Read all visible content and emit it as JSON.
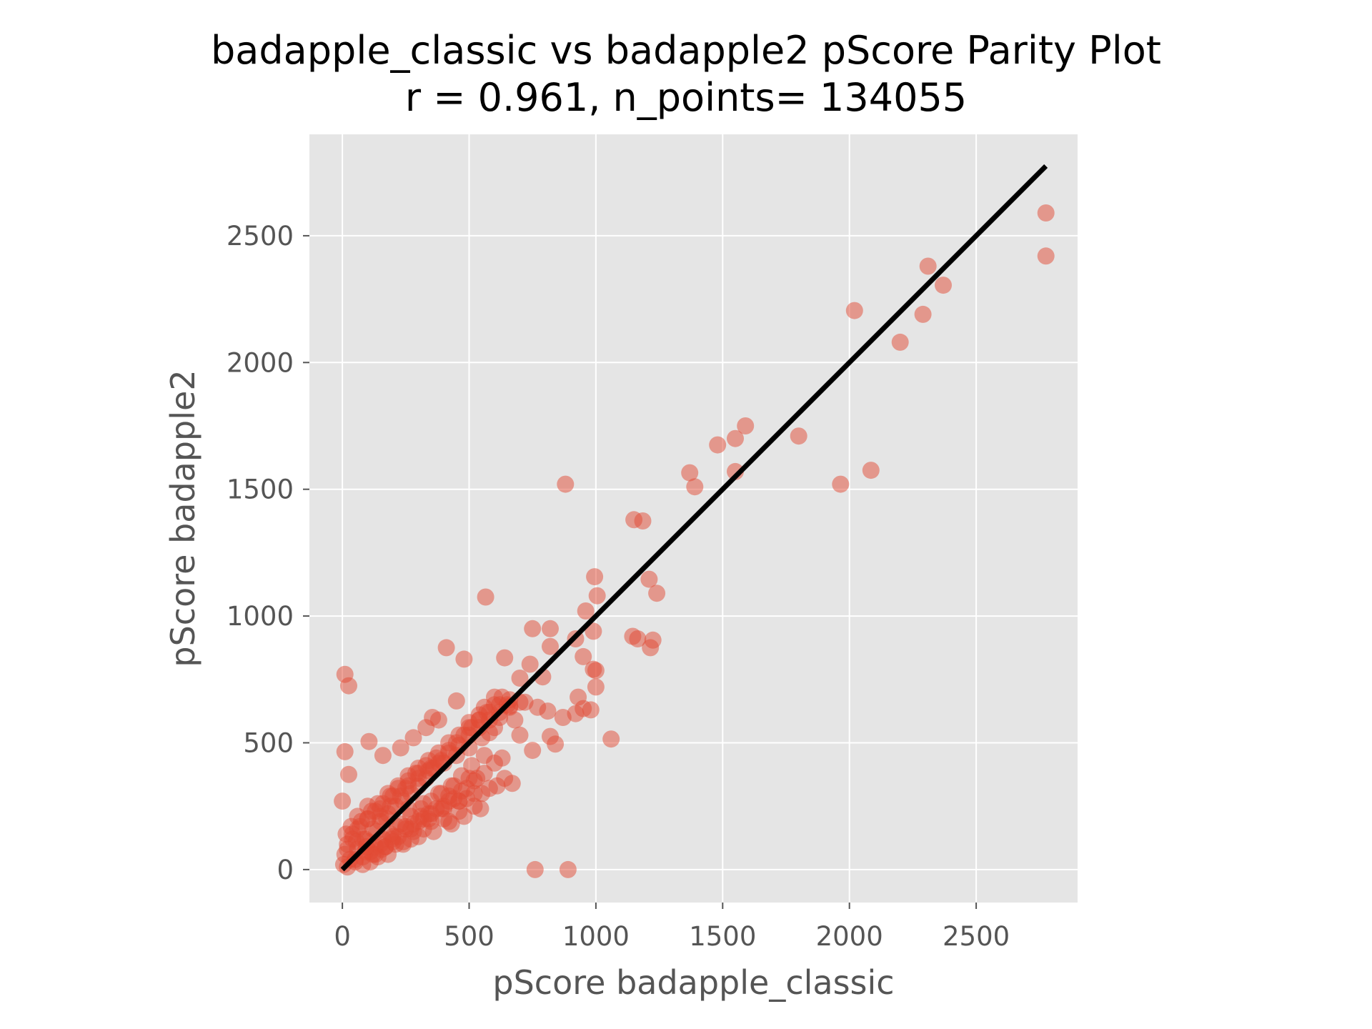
{
  "chart_data": {
    "type": "scatter",
    "title": "badapple_classic vs badapple2 pScore Parity Plot",
    "subtitle": "r = 0.961, n_points= 134055",
    "xlabel": "pScore badapple_classic",
    "ylabel": "pScore badapple2",
    "xlim": [
      -130,
      2900
    ],
    "ylim": [
      -130,
      2900
    ],
    "xticks": [
      "0",
      "500",
      "1000",
      "1500",
      "2000",
      "2500"
    ],
    "yticks": [
      "0",
      "500",
      "1000",
      "1500",
      "2000",
      "2500"
    ],
    "grid": true,
    "background": "#e5e5e5",
    "point_color": "#e24a33",
    "line_color": "#000000",
    "parity_line": {
      "x": [
        0,
        2775
      ],
      "y": [
        0,
        2775
      ]
    },
    "series": [
      {
        "x": [
          2775,
          2775,
          2310,
          2370,
          2290,
          2020,
          2200,
          1590,
          1800,
          1550,
          1480,
          2085,
          1965,
          1550,
          1370,
          1390,
          880,
          1150,
          1185,
          1210,
          1240,
          995,
          960,
          1005,
          920,
          1165,
          1145,
          1215,
          1225,
          565,
          410,
          480,
          750,
          820,
          820,
          990,
          1000,
          950,
          1000,
          650,
          740,
          700,
          790,
          930,
          980,
          770,
          720,
          680,
          810,
          820,
          950,
          1060,
          920,
          840,
          870,
          750,
          640,
          600,
          560,
          700,
          990,
          10,
          25,
          10,
          25,
          105,
          760,
          890,
          160,
          230,
          280,
          330,
          355,
          380,
          450,
          500,
          540,
          580,
          620,
          660,
          300,
          350,
          400,
          450,
          500,
          550,
          600,
          250,
          200,
          150,
          100,
          60,
          40,
          20,
          5,
          0,
          30,
          60,
          90,
          120,
          150,
          180,
          210,
          240,
          270,
          300,
          330,
          360,
          390,
          420,
          450,
          480,
          510,
          540,
          570,
          600,
          630,
          120,
          170,
          220,
          270,
          320,
          370,
          420,
          470,
          520,
          80,
          110,
          140,
          200,
          250,
          300,
          350,
          400,
          440,
          10,
          20,
          40,
          70,
          100,
          130,
          160,
          190,
          220,
          260,
          290,
          330,
          370,
          50,
          80,
          110,
          150,
          190,
          230,
          270,
          310,
          350,
          390,
          430,
          470,
          510,
          560,
          150,
          190,
          230,
          260,
          300,
          340,
          380,
          420,
          460,
          500,
          540,
          580,
          620,
          660,
          700,
          15,
          35,
          55,
          75,
          95,
          115,
          135,
          155,
          175,
          195,
          215,
          240,
          260,
          280,
          300,
          320,
          340,
          360,
          380,
          400,
          420,
          440,
          460,
          480,
          500,
          520,
          545,
          80,
          100,
          130,
          160,
          180,
          210,
          250,
          270,
          320,
          340,
          400,
          430,
          460,
          490,
          520,
          550,
          580,
          610,
          640,
          670,
          20,
          50,
          90,
          130,
          170,
          200,
          240,
          280,
          310,
          350,
          390,
          420,
          460,
          490,
          530,
          560,
          600,
          630,
          60,
          100,
          140,
          180,
          220,
          260,
          300,
          340,
          380,
          420,
          460,
          500,
          540,
          580,
          620,
          660
        ],
        "y": [
          2590,
          2420,
          2380,
          2305,
          2190,
          2205,
          2080,
          1750,
          1710,
          1700,
          1675,
          1575,
          1520,
          1570,
          1565,
          1510,
          1520,
          1380,
          1375,
          1145,
          1090,
          1155,
          1020,
          1080,
          910,
          910,
          920,
          875,
          905,
          1075,
          875,
          830,
          950,
          950,
          880,
          940,
          785,
          840,
          720,
          650,
          810,
          755,
          760,
          680,
          630,
          640,
          660,
          590,
          625,
          525,
          635,
          515,
          615,
          495,
          600,
          470,
          835,
          680,
          640,
          530,
          790,
          770,
          725,
          465,
          375,
          505,
          0,
          0,
          450,
          480,
          520,
          560,
          600,
          590,
          665,
          580,
          610,
          540,
          600,
          645,
          380,
          400,
          420,
          450,
          480,
          520,
          560,
          320,
          290,
          240,
          200,
          160,
          120,
          80,
          20,
          270,
          40,
          80,
          120,
          160,
          190,
          220,
          250,
          270,
          300,
          330,
          360,
          400,
          430,
          470,
          500,
          530,
          560,
          590,
          620,
          650,
          680,
          60,
          90,
          130,
          160,
          200,
          240,
          270,
          310,
          350,
          20,
          30,
          50,
          110,
          160,
          190,
          220,
          250,
          280,
          60,
          100,
          140,
          170,
          200,
          230,
          260,
          290,
          320,
          350,
          380,
          410,
          440,
          30,
          50,
          70,
          100,
          140,
          180,
          210,
          240,
          270,
          300,
          330,
          370,
          410,
          450,
          210,
          250,
          290,
          330,
          360,
          390,
          420,
          460,
          490,
          530,
          560,
          590,
          620,
          640,
          660,
          140,
          170,
          110,
          190,
          90,
          230,
          150,
          80,
          200,
          120,
          170,
          100,
          240,
          180,
          130,
          260,
          200,
          150,
          300,
          240,
          190,
          330,
          270,
          210,
          360,
          300,
          240,
          120,
          110,
          90,
          120,
          60,
          100,
          170,
          120,
          160,
          220,
          200,
          180,
          230,
          280,
          250,
          300,
          320,
          330,
          360,
          340,
          10,
          40,
          70,
          60,
          90,
          130,
          110,
          150,
          210,
          190,
          240,
          290,
          270,
          320,
          360,
          380,
          420,
          440,
          210,
          250,
          260,
          300,
          330,
          370,
          400,
          430,
          460,
          500,
          530,
          560,
          590,
          620,
          650,
          670
        ]
      }
    ]
  }
}
